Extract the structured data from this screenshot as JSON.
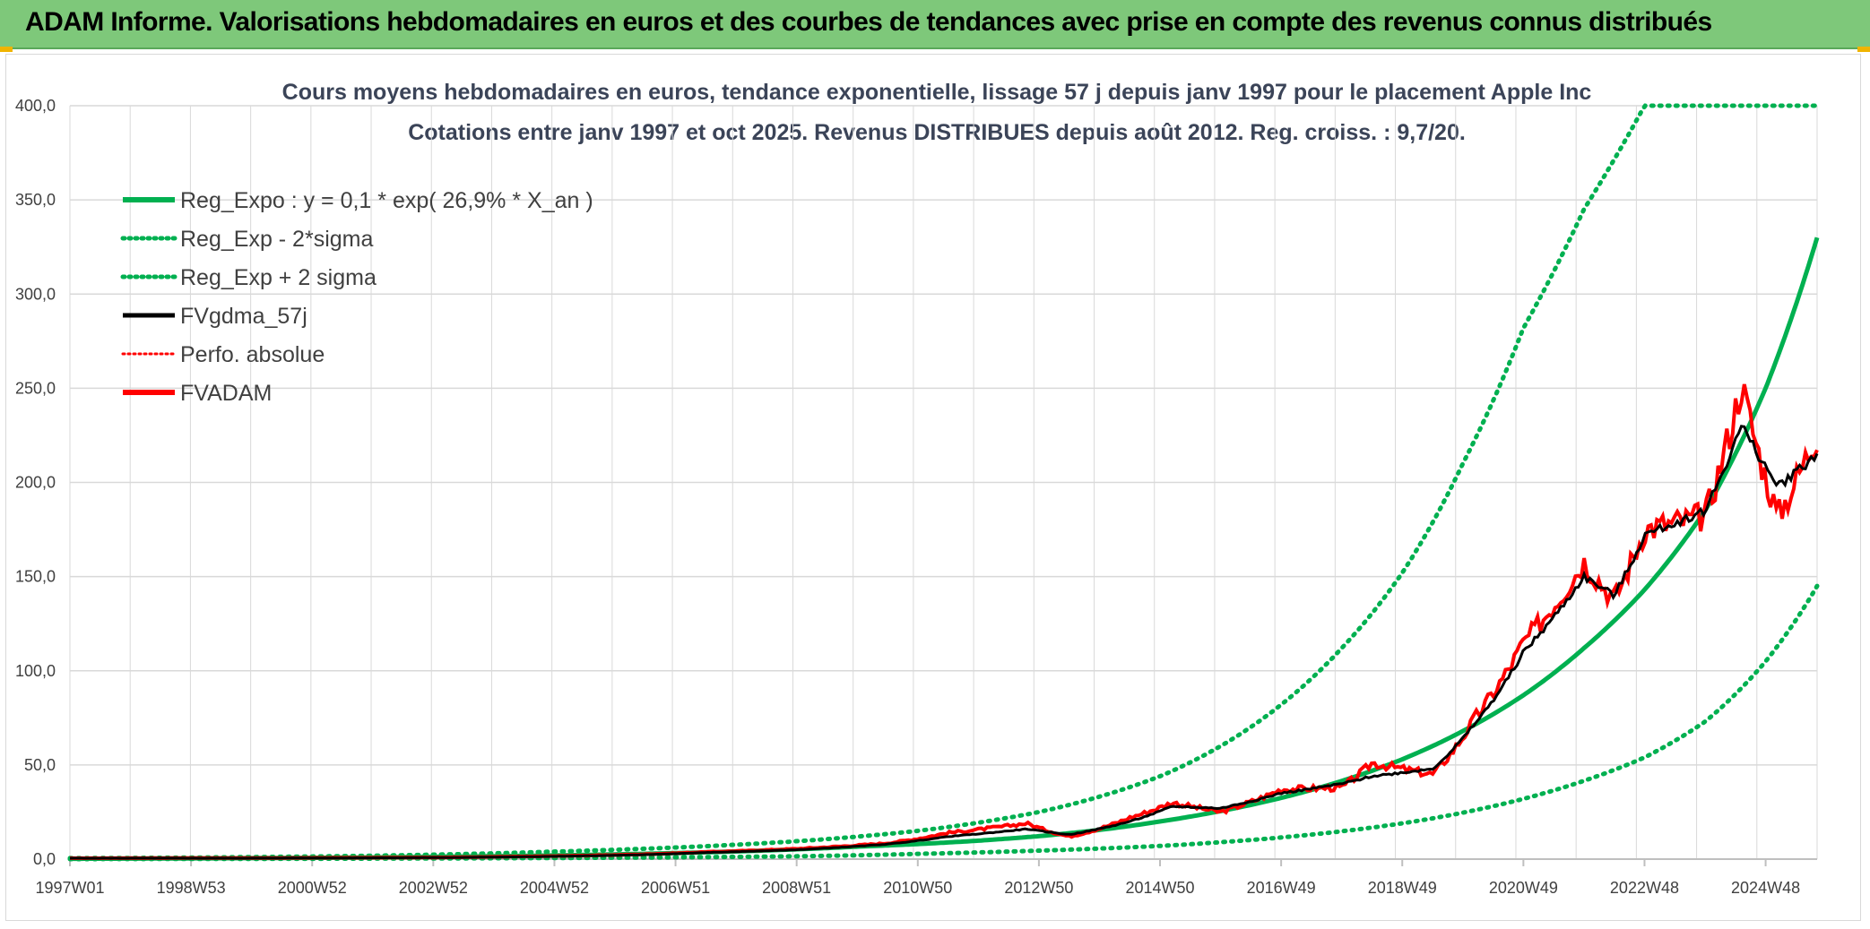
{
  "header": {
    "title": "ADAM Informe. Valorisations hebdomadaires en euros et des courbes de tendances avec prise en compte des revenus connus distribués"
  },
  "colors": {
    "header_bg": "#7ec87a",
    "green": "#00b050",
    "red": "#ff0000",
    "black": "#000000",
    "grid": "#d9d9d9"
  },
  "chart_data": {
    "type": "line",
    "title_line1": "Cours moyens hebdomadaires en euros, tendance exponentielle, lissage 57 j depuis janv 1997 pour le placement Apple Inc",
    "title_line2": "Cotations entre janv 1997 et oct 2025. Revenus DISTRIBUES depuis août 2012. Reg. croiss. : 9,7/20.",
    "xlabel": "",
    "ylabel": "",
    "ylim": [
      0,
      400
    ],
    "xlim": [
      1997.0,
      2025.85
    ],
    "yticks": [
      0,
      50,
      100,
      150,
      200,
      250,
      300,
      350,
      400
    ],
    "ytick_labels": [
      "0,0",
      "50,0",
      "100,0",
      "150,0",
      "200,0",
      "250,0",
      "300,0",
      "350,0",
      "400,0"
    ],
    "xticks": [
      1997.0,
      1999.0,
      2001.0,
      2003.0,
      2005.0,
      2007.0,
      2009.0,
      2011.0,
      2013.0,
      2015.0,
      2017.0,
      2019.0,
      2021.0,
      2023.0,
      2025.0
    ],
    "xtick_labels": [
      "1997W01",
      "1998W53",
      "2000W52",
      "2002W52",
      "2004W52",
      "2006W51",
      "2008W51",
      "2010W50",
      "2012W50",
      "2014W50",
      "2016W49",
      "2018W49",
      "2020W49",
      "2022W48",
      "2024W48"
    ],
    "legend": [
      {
        "name": "Reg_Expo : y = 0,1 * exp( 26,9% *  X_an )",
        "style": "solid-green"
      },
      {
        "name": "Reg_Exp - 2*sigma",
        "style": "dotted-green"
      },
      {
        "name": "Reg_Exp + 2 sigma",
        "style": "dotted-green"
      },
      {
        "name": "FVgdma_57j",
        "style": "solid-black"
      },
      {
        "name": "Perfo. absolue",
        "style": "dotted-red"
      },
      {
        "name": "FVADAM",
        "style": "solid-red"
      }
    ],
    "series": [
      {
        "name": "Reg_Expo",
        "x": [
          1997,
          1999,
          2001,
          2003,
          2005,
          2007,
          2009,
          2010,
          2011,
          2012,
          2013,
          2014,
          2015,
          2016,
          2017,
          2018,
          2019,
          2020,
          2021,
          2022,
          2023,
          2024,
          2025,
          2025.85
        ],
        "values": [
          0.2,
          0.4,
          0.7,
          1.2,
          2.0,
          3.2,
          5.2,
          6.6,
          8.0,
          9.8,
          12.2,
          15.5,
          20.0,
          25.5,
          32.5,
          41.5,
          53.0,
          68.0,
          87.0,
          112.0,
          143.0,
          185.0,
          250.0,
          330.0
        ]
      },
      {
        "name": "Reg_Exp - 2*sigma",
        "x": [
          1997,
          2001,
          2005,
          2009,
          2011,
          2013,
          2015,
          2017,
          2019,
          2021,
          2023,
          2024,
          2025,
          2025.85
        ],
        "values": [
          0.0,
          0.2,
          0.6,
          1.5,
          2.8,
          4.5,
          7.0,
          11.5,
          19.0,
          32.0,
          54.0,
          73.0,
          105.0,
          145.0
        ]
      },
      {
        "name": "Reg_Exp + 2 sigma",
        "x": [
          1997,
          2001,
          2005,
          2009,
          2011,
          2013,
          2015,
          2016,
          2017,
          2018,
          2019,
          2020,
          2021,
          2022,
          2023,
          2023.5,
          2025.85
        ],
        "values": [
          0.5,
          1.4,
          4.0,
          9.5,
          15.0,
          25.0,
          44.0,
          60.0,
          82.0,
          112.0,
          152.0,
          210.0,
          282.0,
          345.0,
          400.0,
          400.0,
          400.0
        ]
      },
      {
        "name": "FVgdma_57j",
        "x": [
          1997,
          2000,
          2003,
          2006,
          2007.5,
          2009,
          2010.5,
          2011.5,
          2012.8,
          2013.5,
          2014.5,
          2015.2,
          2016,
          2017,
          2018,
          2018.5,
          2019.5,
          2020.2,
          2021,
          2022,
          2022.5,
          2023,
          2024,
          2024.6,
          2025.2,
          2025.85
        ],
        "values": [
          0.5,
          0.5,
          0.8,
          2.0,
          3.5,
          5.0,
          8.0,
          12.0,
          16.0,
          13.0,
          20.0,
          28.0,
          27.0,
          35.0,
          40.0,
          44.0,
          48.0,
          72.0,
          110.0,
          150.0,
          140.0,
          172.0,
          185.0,
          230.0,
          198.0,
          215.0
        ]
      },
      {
        "name": "FVADAM",
        "x": [
          1997,
          2000,
          2003,
          2006,
          2007.5,
          2009,
          2010.5,
          2011.5,
          2012.8,
          2013.5,
          2014.5,
          2015.2,
          2016,
          2017,
          2018,
          2018.5,
          2019.5,
          2020.2,
          2021,
          2022,
          2022.5,
          2023,
          2024,
          2024.6,
          2025.2,
          2025.85
        ],
        "values": [
          0.5,
          0.6,
          0.9,
          2.2,
          3.8,
          5.5,
          8.5,
          14.0,
          19.0,
          12.0,
          22.0,
          30.0,
          25.0,
          37.0,
          38.0,
          51.0,
          45.0,
          75.0,
          115.0,
          158.0,
          138.0,
          175.0,
          182.0,
          252.0,
          182.0,
          226.0
        ]
      }
    ]
  }
}
